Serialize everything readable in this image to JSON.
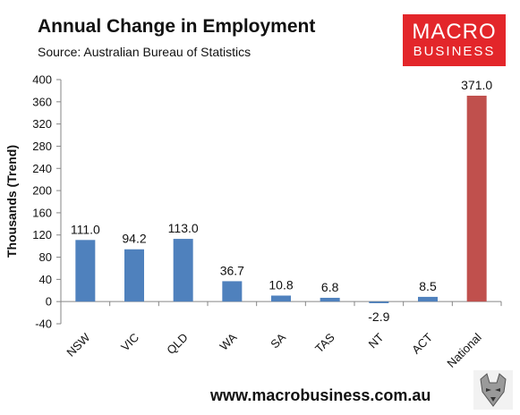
{
  "header": {
    "title": "Annual Change in Employment",
    "source": "Source: Australian Bureau of Statistics"
  },
  "logo": {
    "line1": "MACRO",
    "line2": "BUSINESS",
    "color": "#e3262a"
  },
  "footer": {
    "url": "www.macrobusiness.com.au"
  },
  "chart_data": {
    "type": "bar",
    "ylabel": "Thousands (Trend)",
    "ylim": [
      -40,
      400
    ],
    "ytick_step": 40,
    "yticks": [
      -40,
      0,
      40,
      80,
      120,
      160,
      200,
      240,
      280,
      320,
      360,
      400
    ],
    "categories": [
      "NSW",
      "VIC",
      "QLD",
      "WA",
      "SA",
      "TAS",
      "NT",
      "ACT",
      "National"
    ],
    "values": [
      111.0,
      94.2,
      113.0,
      36.7,
      10.8,
      6.8,
      -2.9,
      8.5,
      371.0
    ],
    "value_labels": [
      "111.0",
      "94.2",
      "113.0",
      "36.7",
      "10.8",
      "6.8",
      "-2.9",
      "8.5",
      "371.0"
    ],
    "colors": [
      "#4f81bd",
      "#4f81bd",
      "#4f81bd",
      "#4f81bd",
      "#4f81bd",
      "#4f81bd",
      "#4f81bd",
      "#4f81bd",
      "#c0504d"
    ],
    "grid": false,
    "legend": "none"
  }
}
